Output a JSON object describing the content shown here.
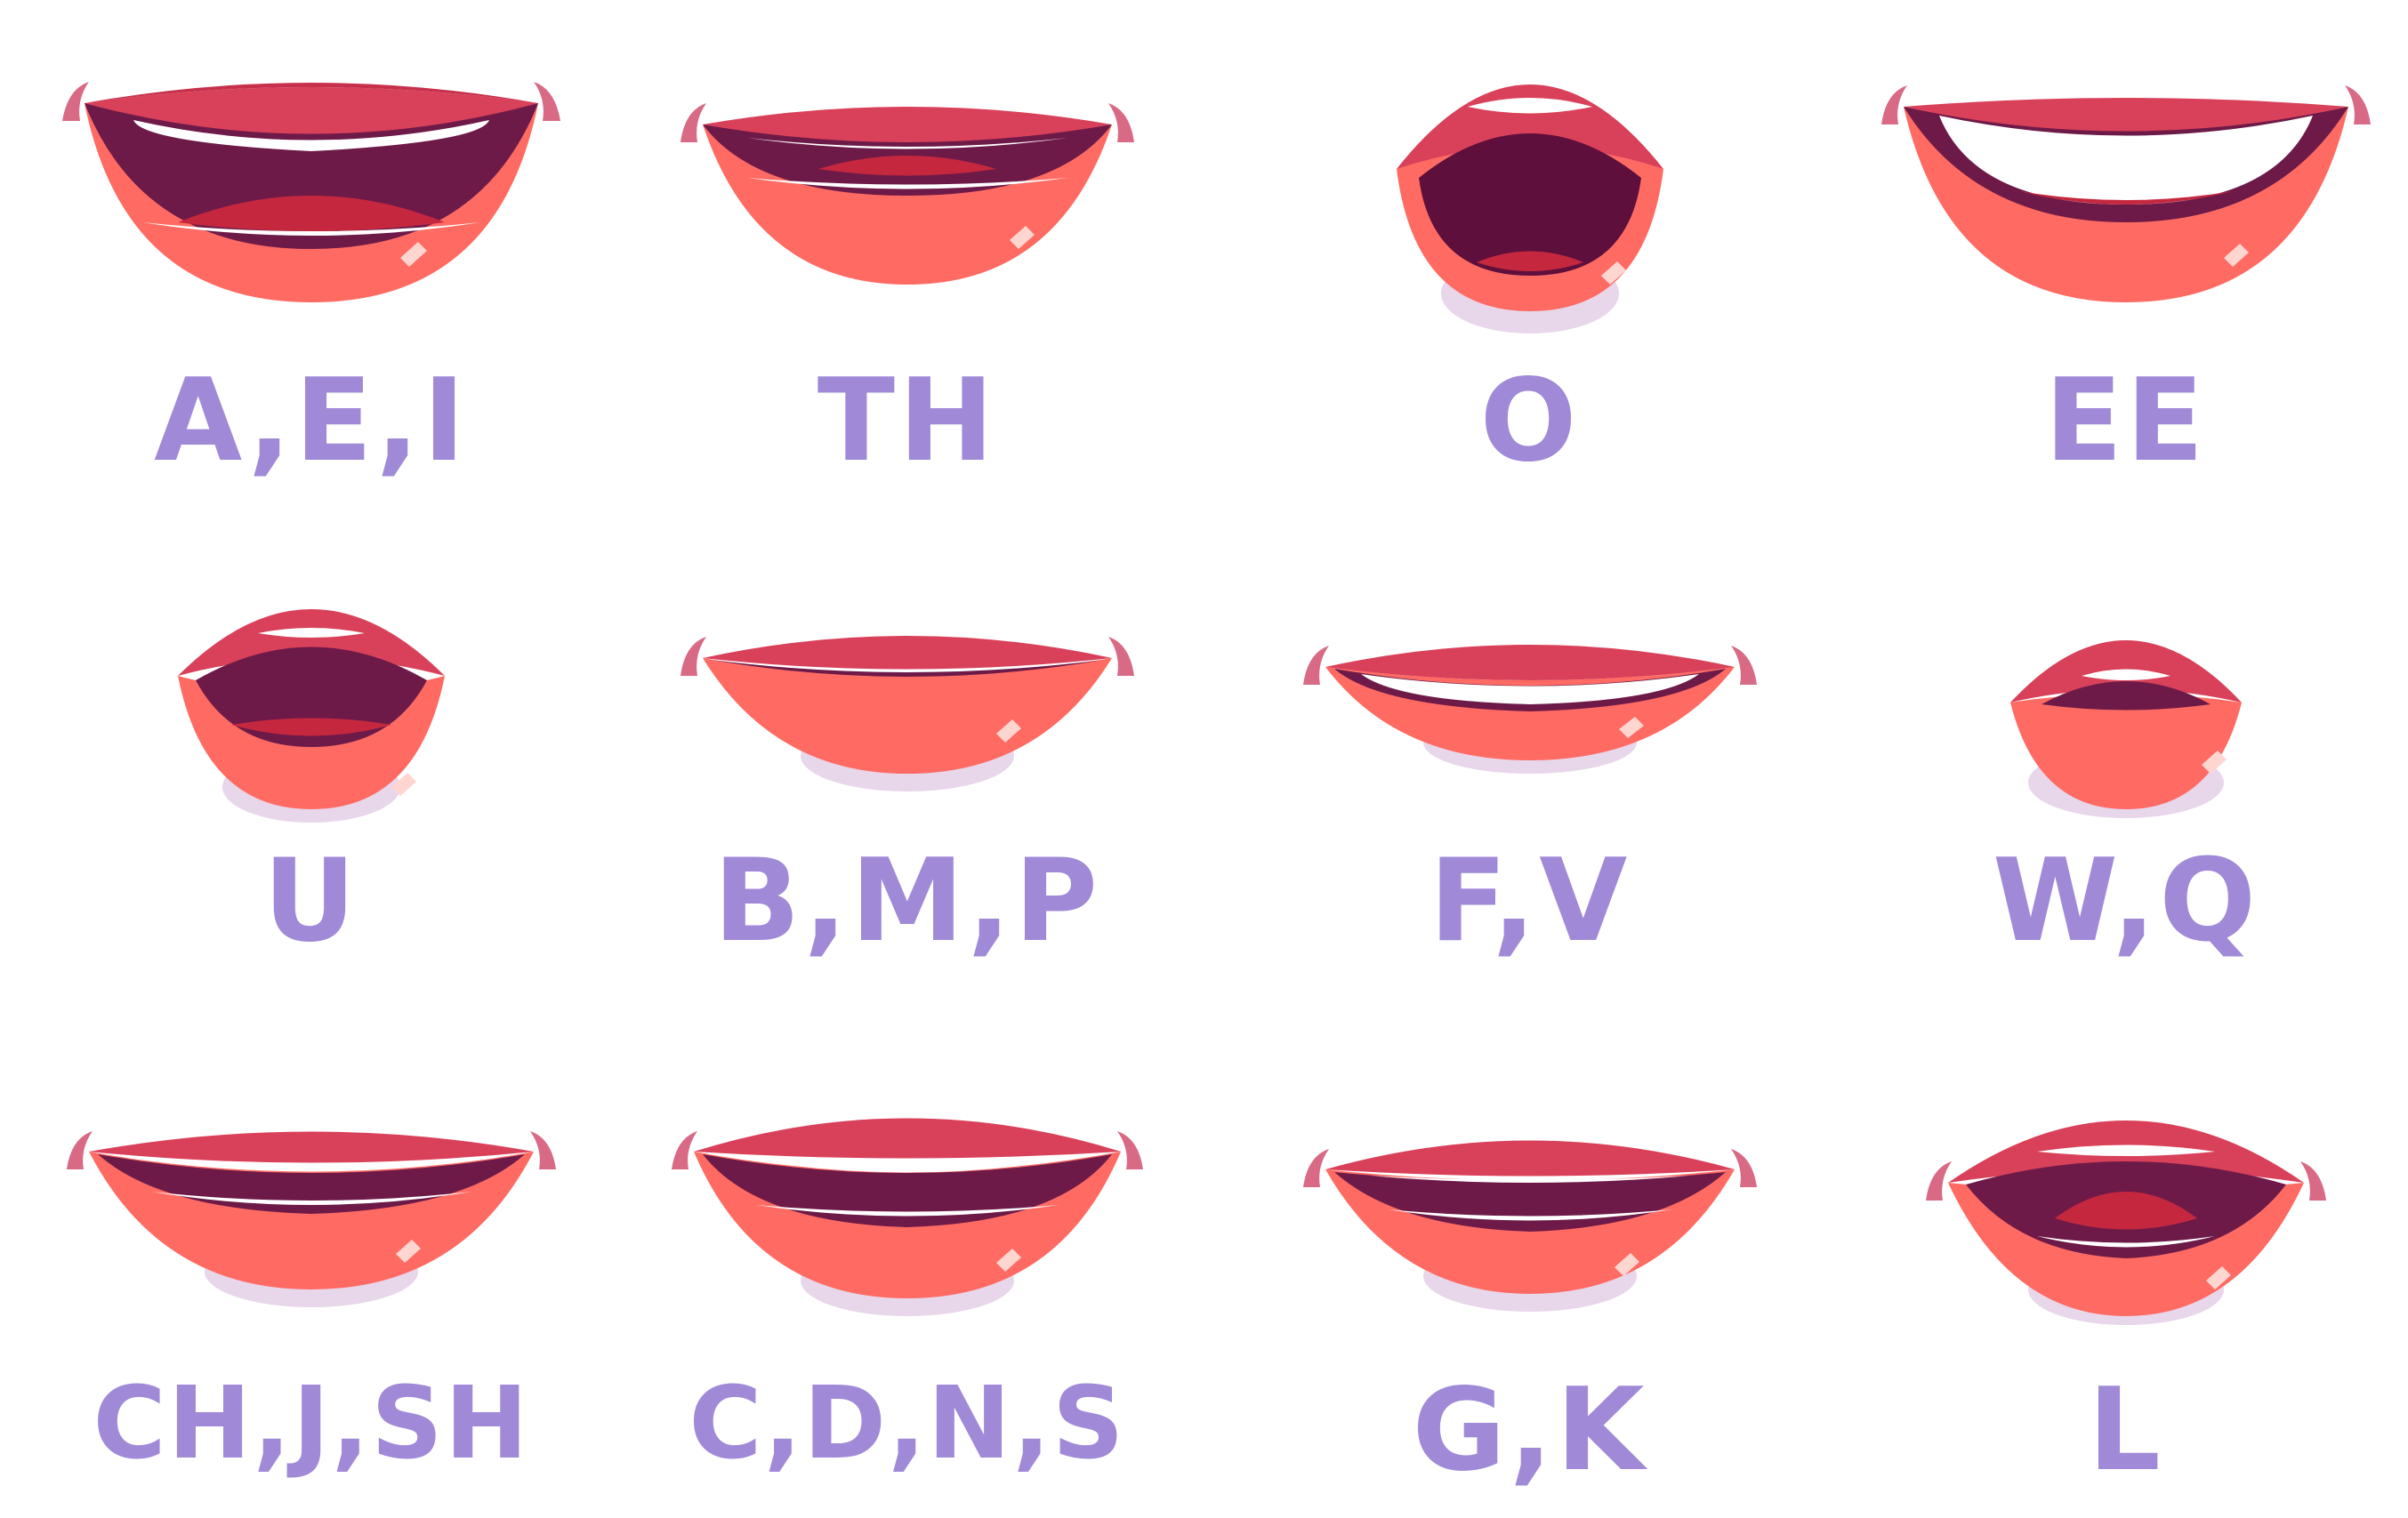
{
  "mouth_shapes": [
    {
      "label": "A,E,I"
    },
    {
      "label": "TH"
    },
    {
      "label": "O"
    },
    {
      "label": "EE"
    },
    {
      "label": "U"
    },
    {
      "label": "B,M,P"
    },
    {
      "label": "F,V"
    },
    {
      "label": "W,Q"
    },
    {
      "label": "CH,J,SH"
    },
    {
      "label": "C,D,N,S"
    },
    {
      "label": "G,K"
    },
    {
      "label": "L"
    }
  ],
  "colors": {
    "upper_lip": "#d9415a",
    "lower_lip": "#ff6b63",
    "mouth_inside": "#6e1a48",
    "teeth": "#ffffff",
    "tongue": "#c5283e",
    "lip_shadow": "#e8d6ea",
    "corner_tip": "#d96a86",
    "label_text": "#a08ad8"
  }
}
